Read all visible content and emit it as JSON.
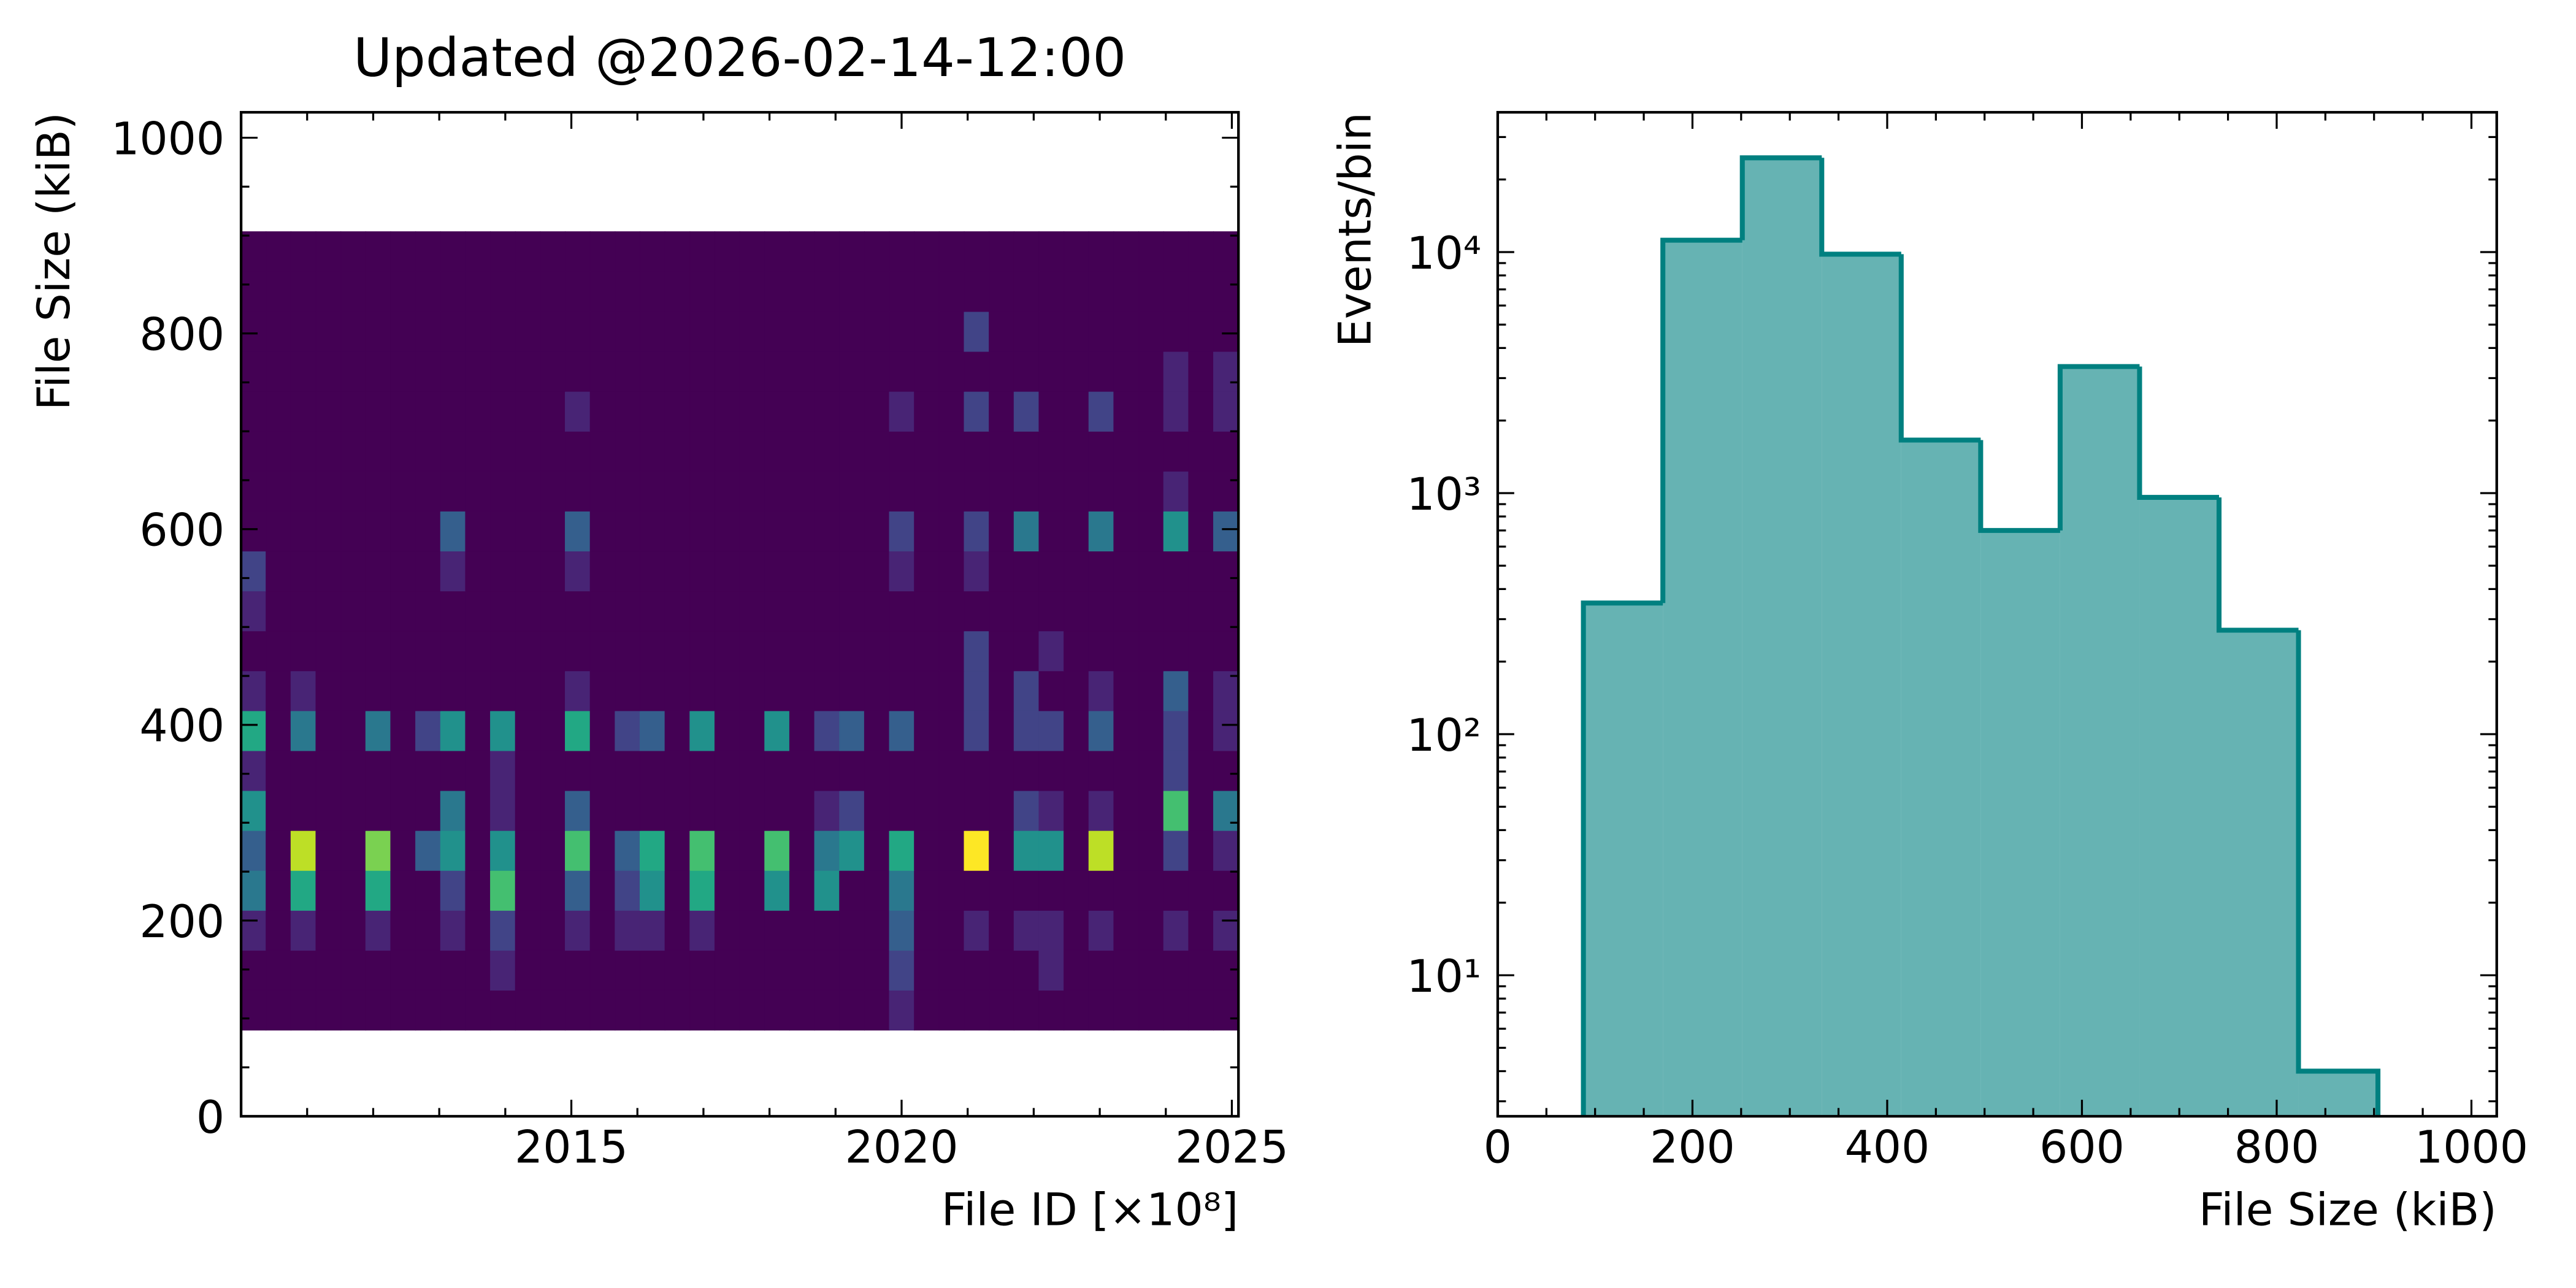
{
  "chart_data": [
    {
      "type": "heatmap",
      "title": "Updated @2026-02-14-12:00",
      "xlabel": "File ID [×10⁸]",
      "ylabel": "File Size (kiB)",
      "xlim": [
        2010,
        2025.1
      ],
      "ylim": [
        0,
        1026
      ],
      "xticks": [
        2015,
        2020,
        2025
      ],
      "xminorticks": [
        2011,
        2012,
        2013,
        2014,
        2016,
        2017,
        2018,
        2019,
        2021,
        2022,
        2023,
        2024
      ],
      "yticks": [
        0,
        200,
        400,
        600,
        800,
        1000
      ],
      "yminorticks": [
        50,
        100,
        150,
        250,
        300,
        350,
        450,
        500,
        550,
        650,
        700,
        750,
        850,
        900,
        950
      ],
      "xrange": [
        2010,
        2025.1
      ],
      "yrange": [
        88,
        904
      ],
      "colormap": "viridis",
      "z": [
        [
          0,
          0,
          0,
          0,
          0,
          0,
          0,
          0,
          0,
          0,
          0,
          0,
          0,
          0,
          0,
          0,
          0,
          0,
          0,
          0,
          0,
          0,
          0,
          0,
          0,
          0,
          1,
          0,
          0,
          0,
          0,
          0,
          0,
          0,
          0,
          0,
          0,
          0,
          0,
          0
        ],
        [
          0,
          0,
          0,
          0,
          0,
          0,
          0,
          0,
          0,
          0,
          1,
          0,
          0,
          0,
          0,
          0,
          0,
          0,
          0,
          0,
          0,
          0,
          0,
          0,
          0,
          0,
          2,
          0,
          0,
          0,
          0,
          0,
          1,
          0,
          0,
          0,
          0,
          0,
          0,
          0
        ],
        [
          1,
          0,
          1,
          0,
          0,
          1,
          0,
          0,
          1,
          0,
          2,
          0,
          0,
          1,
          0,
          1,
          1,
          0,
          1,
          0,
          0,
          0,
          0,
          0,
          0,
          0,
          3,
          0,
          0,
          1,
          0,
          1,
          1,
          0,
          1,
          0,
          0,
          1,
          0,
          1
        ],
        [
          4,
          0,
          6,
          0,
          0,
          6,
          0,
          0,
          2,
          0,
          7,
          0,
          0,
          3,
          0,
          2,
          5,
          0,
          6,
          0,
          0,
          5,
          0,
          5,
          0,
          0,
          4,
          0,
          0,
          0,
          0,
          0,
          0,
          0,
          0,
          0,
          0,
          0,
          0,
          0
        ],
        [
          3,
          0,
          9,
          0,
          0,
          8,
          0,
          3,
          5,
          0,
          5,
          0,
          0,
          7,
          0,
          3,
          6,
          0,
          7,
          0,
          0,
          7,
          0,
          4,
          5,
          0,
          6,
          0,
          0,
          10,
          0,
          5,
          5,
          0,
          9,
          0,
          0,
          2,
          0,
          1
        ],
        [
          5,
          0,
          0,
          0,
          0,
          0,
          0,
          0,
          4,
          0,
          1,
          0,
          0,
          3,
          0,
          0,
          0,
          0,
          0,
          0,
          0,
          0,
          0,
          1,
          2,
          0,
          0,
          0,
          0,
          0,
          0,
          2,
          1,
          0,
          1,
          0,
          0,
          7,
          0,
          4
        ],
        [
          1,
          0,
          0,
          0,
          0,
          0,
          0,
          0,
          0,
          0,
          1,
          0,
          0,
          0,
          0,
          0,
          0,
          0,
          0,
          0,
          0,
          0,
          0,
          0,
          0,
          0,
          0,
          0,
          0,
          0,
          0,
          0,
          0,
          0,
          0,
          0,
          0,
          2,
          0,
          0
        ],
        [
          6,
          0,
          4,
          0,
          0,
          4,
          0,
          2,
          5,
          0,
          5,
          0,
          0,
          6,
          0,
          2,
          3,
          0,
          5,
          0,
          0,
          5,
          0,
          2,
          3,
          0,
          3,
          0,
          0,
          2,
          0,
          2,
          2,
          0,
          3,
          0,
          0,
          2,
          0,
          1
        ],
        [
          1,
          0,
          1,
          0,
          0,
          0,
          0,
          0,
          0,
          0,
          0,
          0,
          0,
          1,
          0,
          0,
          0,
          0,
          0,
          0,
          0,
          0,
          0,
          0,
          0,
          0,
          0,
          0,
          0,
          2,
          0,
          2,
          0,
          0,
          1,
          0,
          0,
          3,
          0,
          1
        ],
        [
          0,
          0,
          0,
          0,
          0,
          0,
          0,
          0,
          0,
          0,
          0,
          0,
          0,
          0,
          0,
          0,
          0,
          0,
          0,
          0,
          0,
          0,
          0,
          0,
          0,
          0,
          0,
          0,
          0,
          2,
          0,
          0,
          1,
          0,
          0,
          0,
          0,
          0,
          0,
          0
        ],
        [
          1,
          0,
          0,
          0,
          0,
          0,
          0,
          0,
          0,
          0,
          0,
          0,
          0,
          0,
          0,
          0,
          0,
          0,
          0,
          0,
          0,
          0,
          0,
          0,
          0,
          0,
          0,
          0,
          0,
          0,
          0,
          0,
          0,
          0,
          0,
          0,
          0,
          0,
          0,
          0
        ],
        [
          2,
          0,
          0,
          0,
          0,
          0,
          0,
          0,
          1,
          0,
          0,
          0,
          0,
          1,
          0,
          0,
          0,
          0,
          0,
          0,
          0,
          0,
          0,
          0,
          0,
          0,
          1,
          0,
          0,
          1,
          0,
          0,
          0,
          0,
          0,
          0,
          0,
          0,
          0,
          0
        ],
        [
          0,
          0,
          0,
          0,
          0,
          0,
          0,
          0,
          3,
          0,
          0,
          0,
          0,
          3,
          0,
          0,
          0,
          0,
          0,
          0,
          0,
          0,
          0,
          0,
          0,
          0,
          2,
          0,
          0,
          2,
          0,
          4,
          0,
          0,
          4,
          0,
          0,
          5,
          0,
          3
        ],
        [
          0,
          0,
          0,
          0,
          0,
          0,
          0,
          0,
          0,
          0,
          0,
          0,
          0,
          0,
          0,
          0,
          0,
          0,
          0,
          0,
          0,
          0,
          0,
          0,
          0,
          0,
          0,
          0,
          0,
          0,
          0,
          0,
          0,
          0,
          0,
          0,
          0,
          1,
          0,
          0
        ],
        [
          0,
          0,
          0,
          0,
          0,
          0,
          0,
          0,
          0,
          0,
          0,
          0,
          0,
          0,
          0,
          0,
          0,
          0,
          0,
          0,
          0,
          0,
          0,
          0,
          0,
          0,
          0,
          0,
          0,
          0,
          0,
          0,
          0,
          0,
          0,
          0,
          0,
          0,
          0,
          0
        ],
        [
          0,
          0,
          0,
          0,
          0,
          0,
          0,
          0,
          0,
          0,
          0,
          0,
          0,
          1,
          0,
          0,
          0,
          0,
          0,
          0,
          0,
          0,
          0,
          0,
          0,
          0,
          1,
          0,
          0,
          2,
          0,
          2,
          0,
          0,
          2,
          0,
          0,
          1,
          0,
          1
        ],
        [
          0,
          0,
          0,
          0,
          0,
          0,
          0,
          0,
          0,
          0,
          0,
          0,
          0,
          0,
          0,
          0,
          0,
          0,
          0,
          0,
          0,
          0,
          0,
          0,
          0,
          0,
          0,
          0,
          0,
          0,
          0,
          0,
          0,
          0,
          0,
          0,
          0,
          1,
          0,
          1
        ],
        [
          0,
          0,
          0,
          0,
          0,
          0,
          0,
          0,
          0,
          0,
          0,
          0,
          0,
          0,
          0,
          0,
          0,
          0,
          0,
          0,
          0,
          0,
          0,
          0,
          0,
          0,
          0,
          0,
          0,
          2,
          0,
          0,
          0,
          0,
          0,
          0,
          0,
          0,
          0,
          0
        ],
        [
          0,
          0,
          0,
          0,
          0,
          0,
          0,
          0,
          0,
          0,
          0,
          0,
          0,
          0,
          0,
          0,
          0,
          0,
          0,
          0,
          0,
          0,
          0,
          0,
          0,
          0,
          0,
          0,
          0,
          0,
          0,
          0,
          0,
          0,
          0,
          0,
          0,
          0,
          0,
          0
        ],
        [
          0,
          0,
          0,
          0,
          0,
          0,
          0,
          0,
          0,
          0,
          0,
          0,
          0,
          0,
          0,
          0,
          0,
          0,
          0,
          0,
          0,
          0,
          0,
          0,
          0,
          0,
          0,
          0,
          0,
          0,
          0,
          0,
          0,
          0,
          0,
          0,
          0,
          0,
          0,
          0
        ]
      ]
    },
    {
      "type": "histogram",
      "xlabel": "File Size (kiB)",
      "ylabel": "Events/bin",
      "xlim": [
        0,
        1026
      ],
      "ylim": [
        2.6,
        38000
      ],
      "log_y": true,
      "xticks": [
        0,
        200,
        400,
        600,
        800,
        1000
      ],
      "xminorticks": [
        50,
        100,
        150,
        250,
        300,
        350,
        450,
        500,
        550,
        650,
        700,
        750,
        850,
        900,
        950
      ],
      "yticks": [
        {
          "value": 10,
          "label": "10¹"
        },
        {
          "value": 100,
          "label": "10²"
        },
        {
          "value": 1000,
          "label": "10³"
        },
        {
          "value": 10000,
          "label": "10⁴"
        }
      ],
      "yminorticks": [
        3,
        4,
        5,
        6,
        7,
        8,
        9,
        20,
        30,
        40,
        50,
        60,
        70,
        80,
        90,
        200,
        300,
        400,
        500,
        600,
        700,
        800,
        900,
        2000,
        3000,
        4000,
        5000,
        6000,
        7000,
        8000,
        9000,
        20000,
        30000
      ],
      "bins": [
        88,
        169.6,
        251.2,
        332.8,
        414.4,
        496,
        577.6,
        659.2,
        740.8,
        822.4,
        904
      ],
      "values": [
        350,
        11200,
        24600,
        9800,
        1660,
        700,
        3350,
        960,
        270,
        4
      ],
      "color": "#008080",
      "alpha": 0.6
    }
  ]
}
